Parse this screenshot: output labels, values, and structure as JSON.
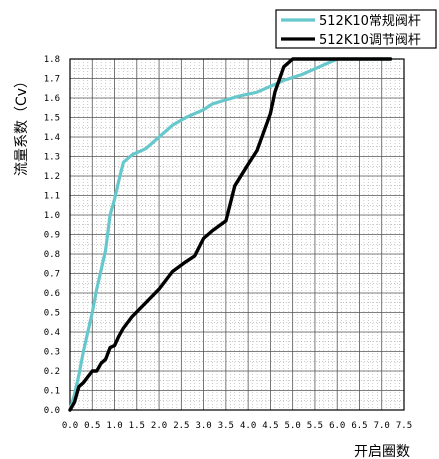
{
  "chart_data": {
    "type": "line",
    "xlabel": "开启圈数",
    "ylabel": "流量系数（Cv）",
    "xlim": [
      0,
      7.5
    ],
    "ylim": [
      0,
      1.8
    ],
    "x_ticks": [
      "0.0",
      "0.5",
      "1.0",
      "1.5",
      "2.0",
      "2.5",
      "3.0",
      "3.5",
      "4.0",
      "4.5",
      "5.0",
      "5.5",
      "6.0",
      "6.5",
      "7.0",
      "7.5"
    ],
    "y_ticks": [
      "0.0",
      "0.1",
      "0.2",
      "0.3",
      "0.4",
      "0.5",
      "0.6",
      "0.7",
      "0.8",
      "0.9",
      "1.0",
      "1.1",
      "1.2",
      "1.3",
      "1.4",
      "1.5",
      "1.6",
      "1.7",
      "1.8"
    ],
    "grid": true,
    "legend_position": "top-right",
    "series": [
      {
        "name": "512K10常规阀杆",
        "color": "#66c8cc",
        "x": [
          0,
          0.1,
          0.2,
          0.3,
          0.4,
          0.5,
          0.6,
          0.7,
          0.8,
          0.9,
          1.0,
          1.1,
          1.2,
          1.4,
          1.7,
          2.0,
          2.3,
          2.6,
          3.0,
          3.2,
          3.5,
          3.8,
          4.2,
          4.5,
          4.8,
          5.2,
          5.5,
          5.8,
          6.0,
          6.5,
          7.0,
          7.2
        ],
        "y": [
          0,
          0.08,
          0.18,
          0.3,
          0.4,
          0.5,
          0.62,
          0.72,
          0.82,
          1.0,
          1.08,
          1.18,
          1.27,
          1.31,
          1.34,
          1.4,
          1.46,
          1.5,
          1.54,
          1.57,
          1.59,
          1.61,
          1.63,
          1.66,
          1.69,
          1.72,
          1.75,
          1.78,
          1.8,
          1.8,
          1.8,
          1.8
        ]
      },
      {
        "name": "512K10调节阀杆",
        "color": "#000000",
        "x": [
          0,
          0.1,
          0.2,
          0.3,
          0.4,
          0.5,
          0.6,
          0.7,
          0.8,
          0.9,
          1.0,
          1.1,
          1.2,
          1.4,
          1.7,
          2.0,
          2.3,
          2.6,
          2.8,
          3.0,
          3.2,
          3.5,
          3.7,
          4.0,
          4.2,
          4.5,
          4.6,
          4.8,
          5.0,
          5.5,
          6.0,
          6.5,
          7.0,
          7.2
        ],
        "y": [
          0,
          0.04,
          0.12,
          0.14,
          0.17,
          0.2,
          0.2,
          0.24,
          0.26,
          0.32,
          0.33,
          0.38,
          0.42,
          0.48,
          0.55,
          0.62,
          0.71,
          0.76,
          0.79,
          0.88,
          0.92,
          0.97,
          1.15,
          1.26,
          1.33,
          1.52,
          1.63,
          1.76,
          1.8,
          1.8,
          1.8,
          1.8,
          1.8,
          1.8
        ]
      }
    ]
  }
}
